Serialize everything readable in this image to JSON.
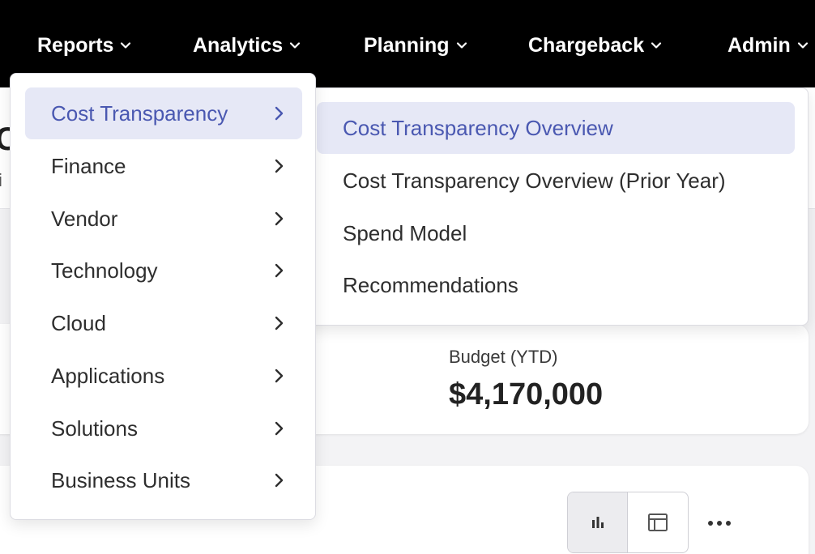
{
  "nav": {
    "items": [
      {
        "label": "Reports"
      },
      {
        "label": "Analytics"
      },
      {
        "label": "Planning"
      },
      {
        "label": "Chargeback"
      },
      {
        "label": "Admin"
      }
    ]
  },
  "page": {
    "title_fragment": "C",
    "subtitle_fragment": "i"
  },
  "reports_menu": {
    "items": [
      {
        "label": "Cost Transparency"
      },
      {
        "label": "Finance"
      },
      {
        "label": "Vendor"
      },
      {
        "label": "Technology"
      },
      {
        "label": "Cloud"
      },
      {
        "label": "Applications"
      },
      {
        "label": "Solutions"
      },
      {
        "label": "Business Units"
      }
    ]
  },
  "cost_transparency_submenu": {
    "items": [
      {
        "label": "Cost Transparency Overview"
      },
      {
        "label": "Cost Transparency Overview (Prior Year)"
      },
      {
        "label": "Spend Model"
      },
      {
        "label": "Recommendations"
      }
    ]
  },
  "kpi": {
    "label": "Budget (YTD)",
    "value": "$4,170,000"
  },
  "colors": {
    "accent": "#4a58b1",
    "accent_bg": "#e6e8f6",
    "nav_bg": "#000000"
  },
  "icons": {
    "nav_dropdown": "chevron-down-icon",
    "submenu_arrow": "chevron-right-icon",
    "chart_view": "bar-chart-icon",
    "table_view": "table-icon",
    "more": "more-horizontal-icon"
  }
}
